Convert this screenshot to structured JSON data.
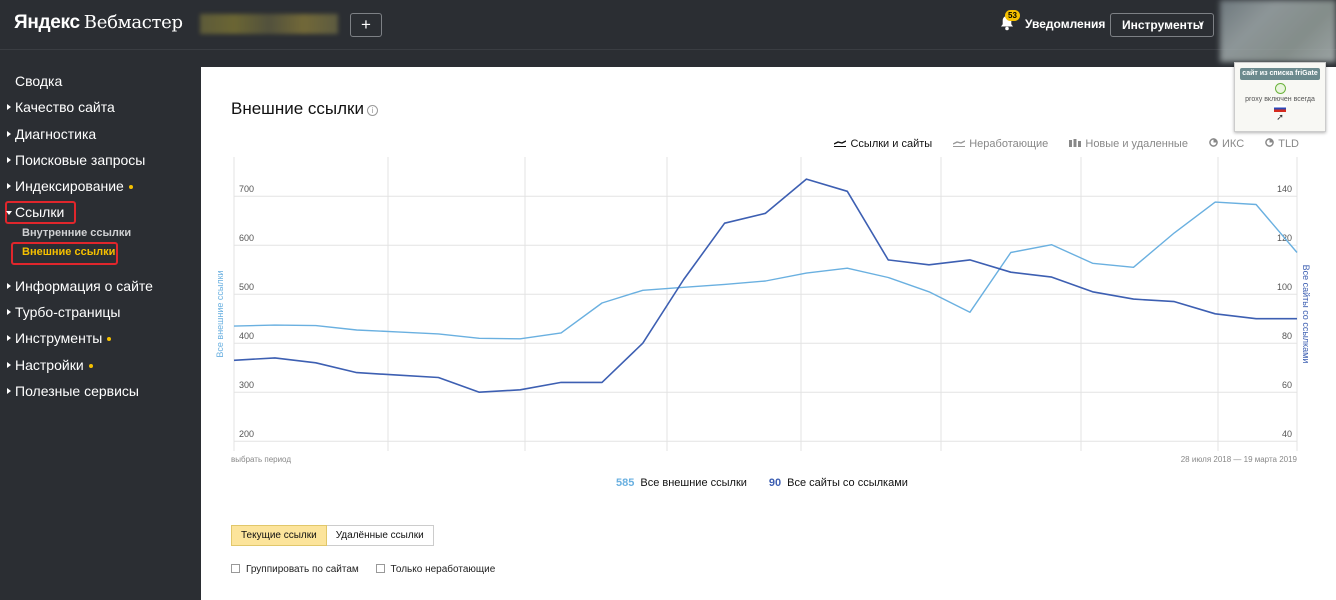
{
  "header": {
    "logo_brand": "Яндекс",
    "logo_product": "Вебмастер",
    "add_label": "+",
    "notification_count": "53",
    "notifications_label": "Уведомления",
    "tools_label": "Инструменты"
  },
  "sidebar": {
    "items": [
      {
        "label": "Сводка"
      },
      {
        "label": "Качество сайта"
      },
      {
        "label": "Диагностика"
      },
      {
        "label": "Поисковые запросы"
      },
      {
        "label": "Индексирование"
      },
      {
        "label": "Ссылки"
      },
      {
        "label": "Информация о сайте"
      },
      {
        "label": "Турбо-страницы"
      },
      {
        "label": "Инструменты"
      },
      {
        "label": "Настройки"
      },
      {
        "label": "Полезные сервисы"
      }
    ],
    "subitems": [
      {
        "label": "Внутренние ссылки"
      },
      {
        "label": "Внешние ссылки"
      }
    ]
  },
  "main": {
    "title": "Внешние ссылки",
    "tabs": [
      {
        "label": "Ссылки и сайты"
      },
      {
        "label": "Неработающие"
      },
      {
        "label": "Новые и удаленные"
      },
      {
        "label": "ИКС"
      },
      {
        "label": "TLD"
      }
    ],
    "period_left": "выбрать период",
    "period_right": "28 июля 2018 — 19 марта 2019",
    "totals": {
      "links_value": "585",
      "links_label": "Все внешние ссылки",
      "sites_value": "90",
      "sites_label": "Все сайты со ссылками"
    },
    "buttons": {
      "current": "Текущие ссылки",
      "deleted": "Удалённые ссылки"
    },
    "checkboxes": {
      "group": "Группировать по сайтам",
      "broken": "Только неработающие"
    }
  },
  "frigate": {
    "head": "сайт из списка friGate",
    "status": "proxy включен всегда"
  },
  "colors": {
    "links_series": "#6ab0e0",
    "sites_series": "#3d5fb2",
    "accent": "#f5c000",
    "highlight": "#e0262c"
  },
  "chart_data": {
    "type": "line",
    "left_axis_label": "Все внешние ссылки",
    "right_axis_label": "Все сайты со ссылками",
    "left_ticks": [
      200,
      300,
      400,
      500,
      600,
      700
    ],
    "right_ticks": [
      40,
      60,
      80,
      100,
      120,
      140
    ],
    "ylim_left": [
      180,
      780
    ],
    "ylim_right": [
      36,
      156
    ],
    "series": [
      {
        "name": "Все внешние ссылки",
        "axis": "left",
        "color": "#6ab0e0",
        "values": [
          435,
          437,
          436,
          427,
          423,
          419,
          410,
          409,
          421,
          482,
          508,
          514,
          520,
          527,
          543,
          553,
          534,
          505,
          463,
          585,
          601,
          563,
          555,
          625,
          688,
          683,
          585
        ]
      },
      {
        "name": "Все сайты со ссылками",
        "axis": "right",
        "color": "#3d5fb2",
        "values": [
          73,
          74,
          72,
          68,
          67,
          66,
          60,
          61,
          64,
          64,
          80,
          106,
          129,
          133,
          147,
          142,
          114,
          112,
          114,
          109,
          107,
          101,
          98,
          97,
          92,
          90,
          90
        ]
      }
    ]
  }
}
